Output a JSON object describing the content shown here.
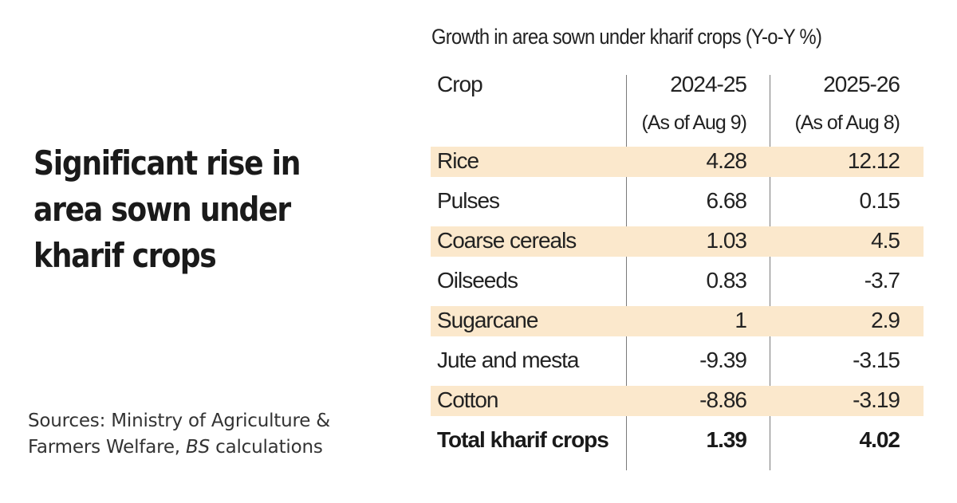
{
  "headline": {
    "lines": [
      "Significant rise in",
      "area sown under",
      "kharif crops"
    ]
  },
  "source": {
    "line1": "Sources: Ministry of Agriculture &",
    "line2_prefix": "Farmers Welfare, ",
    "line2_italic": "BS",
    "line2_suffix": " calculations"
  },
  "colors": {
    "highlight_row": "#fbe8cc",
    "text": "#222222",
    "divider": "#7a7a7a"
  },
  "chart_data": {
    "type": "table",
    "title": "Growth in area sown under kharif crops (Y-o-Y %)",
    "columns": [
      {
        "label": "Crop",
        "sub": ""
      },
      {
        "label": "2024-25",
        "sub": "(As of Aug 9)"
      },
      {
        "label": "2025-26",
        "sub": "(As of Aug 8)"
      }
    ],
    "rows": [
      {
        "crop": "Rice",
        "v2024": "4.28",
        "v2025": "12.12",
        "highlight": true,
        "bold": false
      },
      {
        "crop": "Pulses",
        "v2024": "6.68",
        "v2025": "0.15",
        "highlight": false,
        "bold": false
      },
      {
        "crop": "Coarse cereals",
        "v2024": "1.03",
        "v2025": "4.5",
        "highlight": true,
        "bold": false
      },
      {
        "crop": "Oilseeds",
        "v2024": "0.83",
        "v2025": "-3.7",
        "highlight": false,
        "bold": false
      },
      {
        "crop": "Sugarcane",
        "v2024": "1",
        "v2025": "2.9",
        "highlight": true,
        "bold": false
      },
      {
        "crop": "Jute and mesta",
        "v2024": "-9.39",
        "v2025": "-3.15",
        "highlight": false,
        "bold": false
      },
      {
        "crop": "Cotton",
        "v2024": "-8.86",
        "v2025": "-3.19",
        "highlight": true,
        "bold": false
      },
      {
        "crop": "Total kharif crops",
        "v2024": "1.39",
        "v2025": "4.02",
        "highlight": false,
        "bold": true
      }
    ]
  }
}
